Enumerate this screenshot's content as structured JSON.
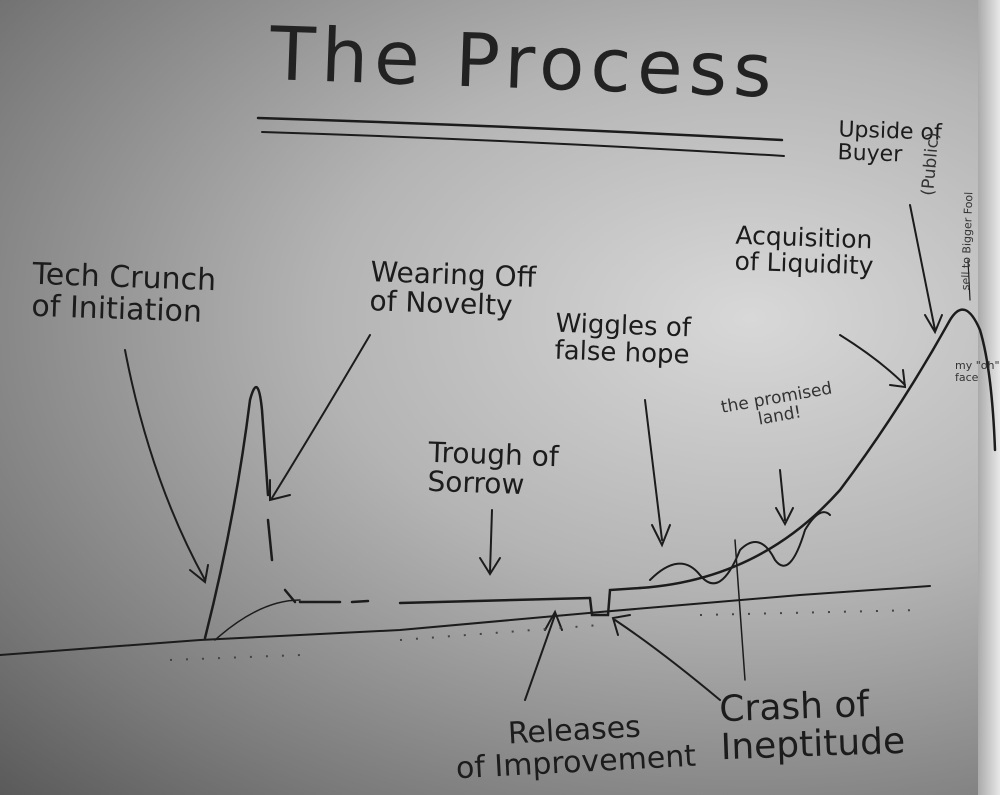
{
  "title": "The Process",
  "labels": {
    "tech_crunch": "Tech Crunch\nof Initiation",
    "wearing_off": "Wearing Off\nof Novelty",
    "wiggles": "Wiggles of\nfalse hope",
    "trough": "Trough of\nSorrow",
    "promised_land": "the promised\nland!",
    "acquisition": "Acquisition\nof Liquidity",
    "upside": "Upside of\nBuyer",
    "public": "(Public)",
    "bigger_fool": "sell to Bigger Fool",
    "oh_face": "my \"oh\"\nface",
    "releases": "Releases\nof Improvement",
    "crash": "Crash of\nIneptitude"
  },
  "colors": {
    "ink": "#1c1c1c",
    "board": "#c8c8c8"
  }
}
